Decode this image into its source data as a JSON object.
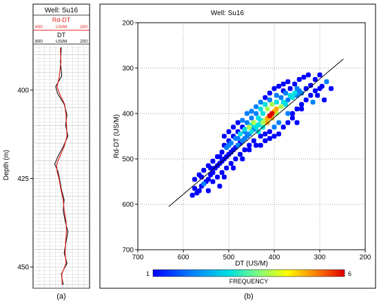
{
  "left_panel": {
    "well_title": "Well: Su16",
    "track1_name": "Rd-DT",
    "track1_scale": {
      "left": "800",
      "unit": "US/M",
      "right": "200"
    },
    "track2_name": "DT",
    "track2_scale": {
      "left": "800",
      "unit": "US/M",
      "right": "200"
    },
    "depth_label": "Depth (m)",
    "depth_ticks": [
      "400",
      "425",
      "450"
    ],
    "caption": "(a)",
    "colors": {
      "dt": "#000000",
      "rd_dt": "#e02020"
    }
  },
  "right_panel": {
    "title": "Well: Su16",
    "xlabel": "DT (US/M)",
    "ylabel": "Rd-DT (US/M)",
    "x_ticks": [
      "700",
      "600",
      "500",
      "400",
      "300",
      "200"
    ],
    "y_ticks": [
      "200",
      "300",
      "400",
      "500",
      "600",
      "700"
    ],
    "colorbar_min": "1",
    "colorbar_max": "6",
    "colorbar_label": "FREQUENCY",
    "caption": "(b)"
  },
  "chart_data": [
    {
      "type": "line",
      "title": "Well: Su16",
      "ylabel": "Depth (m)",
      "ylim": [
        387,
        456
      ],
      "xlim": [
        800,
        200
      ],
      "series": [
        {
          "name": "Rd-DT",
          "unit": "US/M"
        },
        {
          "name": "DT",
          "unit": "US/M"
        }
      ],
      "depth": [
        388,
        392,
        396,
        399,
        401,
        404,
        407,
        410,
        413,
        416,
        419,
        421,
        423,
        425,
        428,
        431,
        434,
        437,
        440,
        443,
        446,
        449,
        452,
        455
      ],
      "dt": [
        500,
        510,
        495,
        560,
        540,
        470,
        440,
        455,
        430,
        480,
        540,
        570,
        535,
        520,
        500,
        470,
        480,
        460,
        430,
        450,
        470,
        440,
        500,
        480
      ],
      "rd_dt": [
        510,
        505,
        520,
        545,
        520,
        465,
        450,
        445,
        440,
        470,
        520,
        550,
        545,
        525,
        505,
        480,
        470,
        450,
        445,
        455,
        460,
        450,
        495,
        490
      ]
    },
    {
      "type": "heatmap",
      "title": "Well: Su16",
      "xlabel": "DT (US/M)",
      "ylabel": "Rd-DT (US/M)",
      "xlim": [
        700,
        200
      ],
      "ylim": [
        200,
        700
      ],
      "grid": true,
      "reference_line": [
        [
          632,
          605
        ],
        [
          248,
          280
        ]
      ],
      "colorbar": {
        "label": "FREQUENCY",
        "min": 1,
        "max": 6
      },
      "points": [
        [
          300,
          315,
          1
        ],
        [
          310,
          325,
          1
        ],
        [
          285,
          330,
          2
        ],
        [
          295,
          340,
          1
        ],
        [
          320,
          338,
          1
        ],
        [
          275,
          345,
          1
        ],
        [
          330,
          345,
          1
        ],
        [
          340,
          355,
          2
        ],
        [
          350,
          360,
          2
        ],
        [
          360,
          365,
          3
        ],
        [
          370,
          370,
          2
        ],
        [
          305,
          360,
          1
        ],
        [
          290,
          370,
          1
        ],
        [
          315,
          375,
          2
        ],
        [
          380,
          375,
          3
        ],
        [
          385,
          385,
          4
        ],
        [
          395,
          390,
          5
        ],
        [
          400,
          395,
          5
        ],
        [
          405,
          400,
          6
        ],
        [
          410,
          405,
          6
        ],
        [
          415,
          410,
          5
        ],
        [
          420,
          415,
          4
        ],
        [
          425,
          420,
          4
        ],
        [
          430,
          415,
          3
        ],
        [
          435,
          425,
          3
        ],
        [
          440,
          430,
          3
        ],
        [
          445,
          435,
          2
        ],
        [
          450,
          440,
          3
        ],
        [
          455,
          445,
          2
        ],
        [
          460,
          450,
          2
        ],
        [
          465,
          455,
          2
        ],
        [
          470,
          460,
          2
        ],
        [
          475,
          465,
          1
        ],
        [
          480,
          470,
          2
        ],
        [
          485,
          475,
          1
        ],
        [
          490,
          480,
          1
        ],
        [
          495,
          485,
          1
        ],
        [
          500,
          490,
          1
        ],
        [
          505,
          495,
          1
        ],
        [
          510,
          500,
          1
        ],
        [
          515,
          505,
          1
        ],
        [
          520,
          510,
          1
        ],
        [
          525,
          515,
          1
        ],
        [
          530,
          520,
          1
        ],
        [
          535,
          530,
          1
        ],
        [
          540,
          535,
          1
        ],
        [
          545,
          545,
          1
        ],
        [
          550,
          550,
          1
        ],
        [
          555,
          555,
          2
        ],
        [
          560,
          560,
          1
        ],
        [
          565,
          570,
          1
        ],
        [
          570,
          575,
          1
        ],
        [
          575,
          565,
          1
        ],
        [
          580,
          580,
          1
        ],
        [
          390,
          420,
          2
        ],
        [
          400,
          430,
          2
        ],
        [
          410,
          440,
          1
        ],
        [
          420,
          445,
          1
        ],
        [
          430,
          450,
          1
        ],
        [
          370,
          400,
          2
        ],
        [
          360,
          410,
          1
        ],
        [
          350,
          420,
          1
        ],
        [
          340,
          390,
          1
        ],
        [
          380,
          350,
          1
        ],
        [
          395,
          360,
          2
        ],
        [
          410,
          370,
          2
        ],
        [
          420,
          380,
          3
        ],
        [
          430,
          390,
          3
        ],
        [
          440,
          400,
          2
        ],
        [
          450,
          410,
          2
        ],
        [
          460,
          420,
          2
        ],
        [
          470,
          430,
          1
        ],
        [
          480,
          440,
          1
        ],
        [
          490,
          450,
          1
        ],
        [
          500,
          460,
          1
        ],
        [
          510,
          470,
          1
        ],
        [
          445,
          460,
          1
        ],
        [
          455,
          470,
          1
        ],
        [
          465,
          480,
          1
        ],
        [
          475,
          490,
          1
        ],
        [
          485,
          500,
          1
        ],
        [
          495,
          510,
          1
        ],
        [
          505,
          520,
          1
        ],
        [
          515,
          530,
          1
        ],
        [
          525,
          540,
          1
        ],
        [
          535,
          550,
          1
        ],
        [
          455,
          480,
          1
        ],
        [
          470,
          500,
          1
        ],
        [
          490,
          520,
          1
        ],
        [
          510,
          540,
          1
        ],
        [
          520,
          560,
          1
        ],
        [
          545,
          570,
          1
        ],
        [
          560,
          540,
          1
        ],
        [
          540,
          520,
          1
        ],
        [
          520,
          495,
          1
        ],
        [
          500,
          470,
          2
        ],
        [
          480,
          455,
          2
        ],
        [
          465,
          440,
          2
        ],
        [
          450,
          425,
          3
        ],
        [
          435,
          410,
          3
        ],
        [
          425,
          400,
          3
        ],
        [
          415,
          390,
          4
        ],
        [
          405,
          380,
          4
        ],
        [
          395,
          375,
          3
        ],
        [
          385,
          365,
          2
        ],
        [
          375,
          355,
          2
        ],
        [
          365,
          345,
          1
        ],
        [
          355,
          335,
          1
        ],
        [
          345,
          325,
          1
        ],
        [
          335,
          320,
          1
        ],
        [
          325,
          315,
          1
        ],
        [
          440,
          470,
          1
        ],
        [
          430,
          470,
          1
        ],
        [
          420,
          460,
          1
        ],
        [
          410,
          455,
          1
        ],
        [
          400,
          450,
          1
        ],
        [
          390,
          445,
          1
        ],
        [
          380,
          430,
          1
        ],
        [
          370,
          420,
          1
        ],
        [
          360,
          400,
          1
        ],
        [
          350,
          390,
          1
        ],
        [
          340,
          380,
          1
        ],
        [
          330,
          370,
          1
        ],
        [
          320,
          360,
          1
        ],
        [
          310,
          350,
          1
        ],
        [
          300,
          345,
          1
        ],
        [
          470,
          415,
          2
        ],
        [
          480,
          420,
          1
        ],
        [
          490,
          430,
          1
        ],
        [
          500,
          440,
          1
        ],
        [
          510,
          450,
          1
        ],
        [
          460,
          400,
          2
        ],
        [
          450,
          395,
          2
        ],
        [
          440,
          385,
          2
        ],
        [
          430,
          375,
          2
        ],
        [
          420,
          365,
          1
        ],
        [
          410,
          355,
          1
        ],
        [
          400,
          345,
          1
        ],
        [
          390,
          340,
          1
        ],
        [
          380,
          335,
          1
        ],
        [
          370,
          330,
          1
        ],
        [
          455,
          430,
          4
        ],
        [
          445,
          420,
          4
        ],
        [
          465,
          435,
          3
        ],
        [
          475,
          445,
          3
        ],
        [
          485,
          455,
          2
        ],
        [
          495,
          465,
          2
        ],
        [
          505,
          475,
          2
        ],
        [
          515,
          485,
          1
        ],
        [
          525,
          495,
          1
        ],
        [
          535,
          505,
          1
        ],
        [
          545,
          515,
          1
        ],
        [
          555,
          525,
          1
        ],
        [
          565,
          535,
          1
        ],
        [
          575,
          545,
          1
        ],
        [
          350,
          345,
          2
        ],
        [
          345,
          350,
          2
        ],
        [
          355,
          355,
          3
        ],
        [
          365,
          360,
          3
        ],
        [
          375,
          380,
          3
        ],
        [
          435,
          440,
          3
        ],
        [
          425,
          430,
          3
        ],
        [
          415,
          420,
          5
        ],
        [
          405,
          410,
          5
        ],
        [
          395,
          400,
          4
        ]
      ]
    }
  ]
}
